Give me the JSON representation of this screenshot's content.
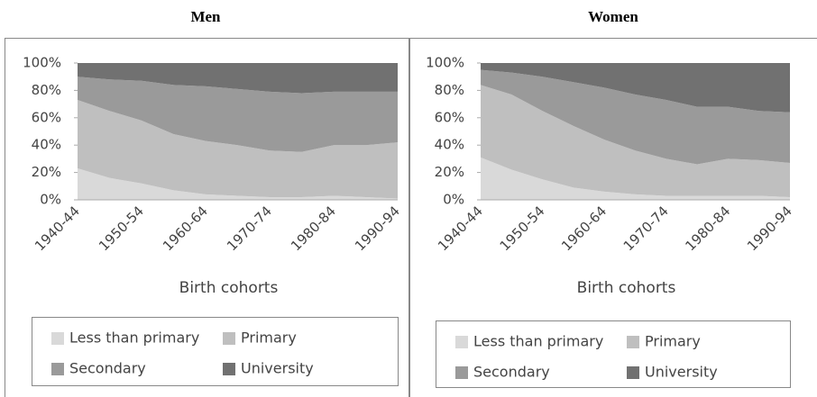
{
  "chart_data": [
    {
      "type": "stacked_area",
      "title": "Men",
      "x_label": "Birth cohorts",
      "categories": [
        "1940-44",
        null,
        "1950-54",
        null,
        "1960-64",
        null,
        "1970-74",
        null,
        "1980-84",
        null,
        "1990-94"
      ],
      "ylim": [
        0,
        100
      ],
      "yticks": [
        {
          "value": 0,
          "label": "0%"
        },
        {
          "value": 20,
          "label": "20%"
        },
        {
          "value": 40,
          "label": "40%"
        },
        {
          "value": 60,
          "label": "60%"
        },
        {
          "value": 80,
          "label": "80%"
        },
        {
          "value": 100,
          "label": "100%"
        }
      ],
      "series": [
        {
          "name": "Less than primary",
          "color": "#d9d9d9",
          "values": [
            23,
            16,
            12,
            7,
            4,
            3,
            2,
            2,
            3,
            2,
            1
          ]
        },
        {
          "name": "Primary",
          "color": "#bfbfbf",
          "values": [
            50,
            49,
            46,
            41,
            39,
            37,
            34,
            33,
            37,
            38,
            41
          ]
        },
        {
          "name": "Secondary",
          "color": "#9a9a9a",
          "values": [
            17,
            23,
            29,
            36,
            40,
            41,
            43,
            43,
            39,
            39,
            37
          ]
        },
        {
          "name": "University",
          "color": "#717171",
          "values": [
            10,
            12,
            13,
            16,
            17,
            19,
            21,
            22,
            21,
            21,
            21
          ]
        }
      ]
    },
    {
      "type": "stacked_area",
      "title": "Women",
      "x_label": "Birth cohorts",
      "categories": [
        "1940-44",
        null,
        "1950-54",
        null,
        "1960-64",
        null,
        "1970-74",
        null,
        "1980-84",
        null,
        "1990-94"
      ],
      "ylim": [
        0,
        100
      ],
      "yticks": [
        {
          "value": 0,
          "label": "0%"
        },
        {
          "value": 20,
          "label": "20%"
        },
        {
          "value": 40,
          "label": "40%"
        },
        {
          "value": 60,
          "label": "60%"
        },
        {
          "value": 80,
          "label": "80%"
        },
        {
          "value": 100,
          "label": "100%"
        }
      ],
      "series": [
        {
          "name": "Less than primary",
          "color": "#d9d9d9",
          "values": [
            31,
            22,
            15,
            9,
            6,
            4,
            3,
            3,
            3,
            3,
            2
          ]
        },
        {
          "name": "Primary",
          "color": "#bfbfbf",
          "values": [
            53,
            55,
            50,
            45,
            38,
            32,
            27,
            23,
            27,
            26,
            25
          ]
        },
        {
          "name": "Secondary",
          "color": "#9a9a9a",
          "values": [
            11,
            16,
            25,
            32,
            38,
            41,
            43,
            42,
            38,
            36,
            37
          ]
        },
        {
          "name": "University",
          "color": "#717171",
          "values": [
            5,
            7,
            10,
            14,
            18,
            23,
            27,
            32,
            32,
            35,
            36
          ]
        }
      ]
    }
  ]
}
